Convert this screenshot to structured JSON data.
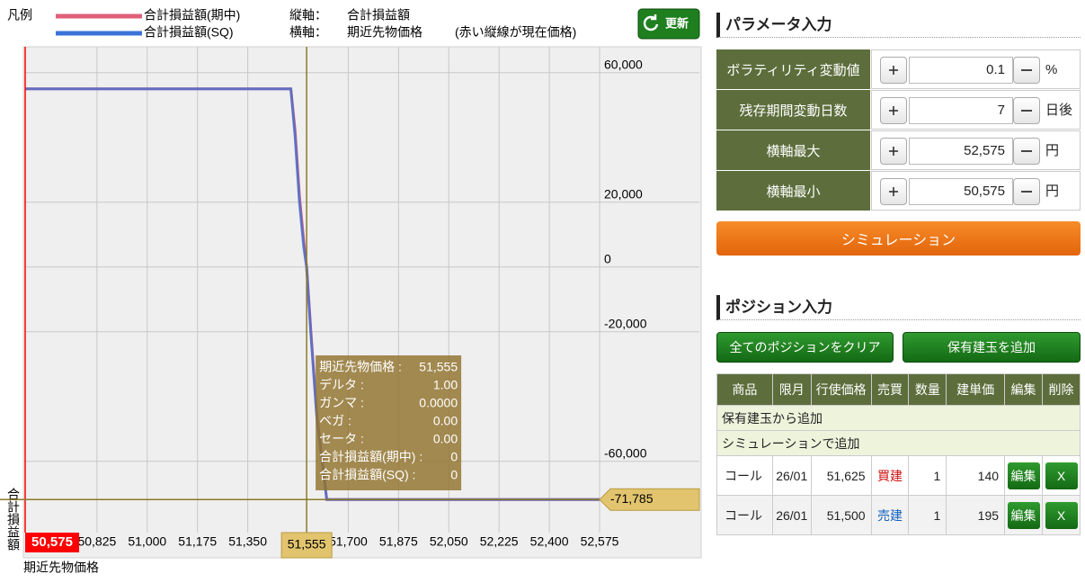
{
  "legend": {
    "title": "凡例",
    "items": [
      "合計損益額(期中)",
      "合計損益額(SQ)"
    ]
  },
  "axes_info": {
    "y_label": "縦軸：",
    "y_value": "合計損益額",
    "x_label": "横軸：",
    "x_value": "期近先物価格",
    "note": "(赤い縦線が現在価格)"
  },
  "refresh_button": "更新",
  "chart_data": {
    "type": "line",
    "y_axis_label": "合計損益額",
    "x_axis_label": "期近先物価格",
    "x": [
      50575,
      51500,
      51515,
      51530,
      51545,
      51555,
      51570,
      51590,
      51625,
      52575
    ],
    "series": [
      {
        "name": "合計損益額(期中)",
        "color": "#e0607a",
        "values": [
          55000,
          55000,
          42000,
          22000,
          8000,
          0,
          -20000,
          -45000,
          -71785,
          -71785
        ]
      },
      {
        "name": "合計損益額(SQ)",
        "color": "#3a72d8",
        "values": [
          55000,
          55000,
          40000,
          20000,
          6000,
          0,
          -21000,
          -46000,
          -71785,
          -71785
        ]
      }
    ],
    "xlim": [
      50575,
      52575
    ],
    "ylim": [
      -82000,
      68000
    ],
    "xticks": [
      {
        "value": 50825,
        "label": "50,825"
      },
      {
        "value": 51000,
        "label": "51,000"
      },
      {
        "value": 51175,
        "label": "51,175"
      },
      {
        "value": 51350,
        "label": "51,350"
      },
      {
        "value": 51700,
        "label": "51,700"
      },
      {
        "value": 51875,
        "label": "51,875"
      },
      {
        "value": 52050,
        "label": "52,050"
      },
      {
        "value": 52225,
        "label": "52,225"
      },
      {
        "value": 52400,
        "label": "52,400"
      },
      {
        "value": 52575,
        "label": "52,575"
      }
    ],
    "yticks": [
      {
        "value": 60000,
        "label": "60,000"
      },
      {
        "value": 20000,
        "label": "20,000"
      },
      0,
      {
        "value": -20000,
        "label": "-20,000"
      },
      {
        "value": -60000,
        "label": "-60,000"
      }
    ],
    "grid": true,
    "current_price": {
      "value": 50575,
      "label": "50,575",
      "color": "#ff0000"
    },
    "cursor": {
      "x": {
        "value": 51555,
        "label": "51,555"
      },
      "y": {
        "value": -71785,
        "label": "-71,785"
      }
    },
    "tooltip": [
      [
        "期近先物価格 :",
        "51,555"
      ],
      [
        "デルタ :",
        "1.00"
      ],
      [
        "ガンマ :",
        "0.0000"
      ],
      [
        "ベガ :",
        "0.00"
      ],
      [
        "セータ :",
        "0.00"
      ],
      [
        "合計損益額(期中) :",
        "0"
      ],
      [
        "合計損益額(SQ) :",
        "0"
      ]
    ]
  },
  "parameters": {
    "title": "パラメータ入力",
    "rows": [
      {
        "label": "ボラティリティ変動値",
        "value": "0.1",
        "unit": "%"
      },
      {
        "label": "残存期間変動日数",
        "value": "7",
        "unit": "日後"
      },
      {
        "label": "横軸最大",
        "value": "52,575",
        "unit": "円"
      },
      {
        "label": "横軸最小",
        "value": "50,575",
        "unit": "円"
      }
    ],
    "button": "シミュレーション"
  },
  "positions": {
    "title": "ポジション入力",
    "clear_button": "全てのポジションをクリア",
    "add_button": "保有建玉を追加",
    "headers": [
      "商品",
      "限月",
      "行使価格",
      "売買",
      "数量",
      "建単価",
      "編集",
      "削除"
    ],
    "sections": [
      "保有建玉から追加",
      "シミュレーションで追加"
    ],
    "rows": [
      [
        "コール",
        "26/01",
        "51,625",
        "買建",
        "1",
        "140"
      ],
      [
        "コール",
        "26/01",
        "51,500",
        "売建",
        "1",
        "195"
      ]
    ],
    "edit_label": "編集",
    "delete_label": "X"
  }
}
